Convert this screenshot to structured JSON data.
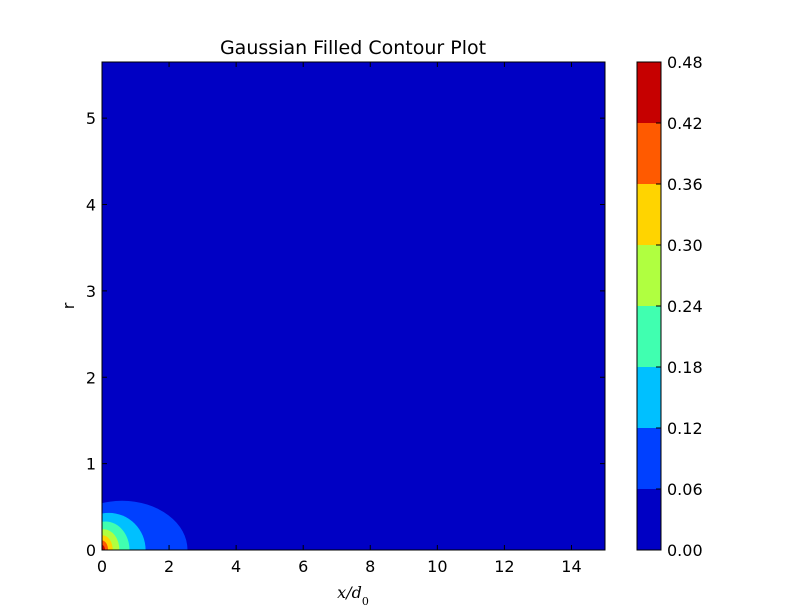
{
  "chart_data": {
    "type": "heatmap",
    "subtype": "filled-contour",
    "title": "Gaussian Filled Contour Plot",
    "xlabel": "x/d_0",
    "ylabel": "r",
    "xlim": [
      0,
      15
    ],
    "ylim": [
      0,
      5.65
    ],
    "x_ticks": [
      "0",
      "2",
      "4",
      "6",
      "8",
      "10",
      "12",
      "14"
    ],
    "y_ticks": [
      "0",
      "1",
      "2",
      "3",
      "4",
      "5"
    ],
    "grid": false,
    "colorbar": {
      "position": "right",
      "levels": [
        0.0,
        0.06,
        0.12,
        0.18,
        0.24,
        0.3,
        0.36,
        0.42,
        0.48
      ],
      "labels": [
        "0.00",
        "0.06",
        "0.12",
        "0.18",
        "0.24",
        "0.30",
        "0.36",
        "0.42",
        "0.48"
      ],
      "colors": [
        "#0000c4",
        "#0040ff",
        "#00c0ff",
        "#40ffb0",
        "#b0ff40",
        "#ffd400",
        "#ff5a00",
        "#c60000"
      ]
    },
    "contour_regions": [
      {
        "level_min": 0.06,
        "level_max": 0.12,
        "center": [
          0.6,
          0
        ],
        "radius_x": 1.95,
        "radius_y": 0.57
      },
      {
        "level_min": 0.12,
        "level_max": 0.18,
        "center": [
          0.2,
          0
        ],
        "radius_x": 1.1,
        "radius_y": 0.43
      },
      {
        "level_min": 0.18,
        "level_max": 0.24,
        "center": [
          0.1,
          0
        ],
        "radius_x": 0.72,
        "radius_y": 0.33
      },
      {
        "level_min": 0.24,
        "level_max": 0.3,
        "center": [
          0.05,
          0
        ],
        "radius_x": 0.47,
        "radius_y": 0.24
      },
      {
        "level_min": 0.3,
        "level_max": 0.36,
        "center": [
          0.02,
          0
        ],
        "radius_x": 0.3,
        "radius_y": 0.17
      },
      {
        "level_min": 0.36,
        "level_max": 0.42,
        "center": [
          0.0,
          0
        ],
        "radius_x": 0.18,
        "radius_y": 0.11
      },
      {
        "level_min": 0.42,
        "level_max": 0.48,
        "center": [
          0.0,
          0
        ],
        "radius_x": 0.09,
        "radius_y": 0.06
      }
    ]
  }
}
